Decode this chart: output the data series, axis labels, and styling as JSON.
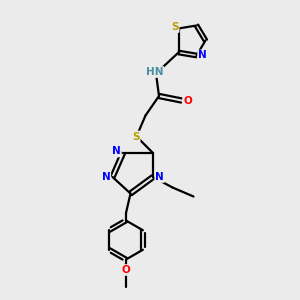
{
  "background_color": "#ebebeb",
  "bond_color": "#000000",
  "atom_colors": {
    "S": "#b8a000",
    "N": "#0000ff",
    "O": "#ff0000",
    "H": "#4a8fa0",
    "C": "#000000"
  },
  "figsize": [
    3.0,
    3.0
  ],
  "dpi": 100,
  "lw": 1.6,
  "fontsize": 7.5
}
